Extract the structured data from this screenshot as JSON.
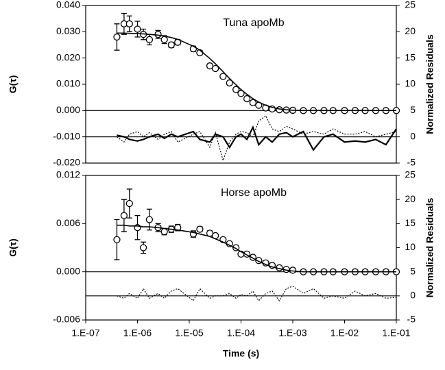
{
  "chart_data": [
    {
      "type": "scatter",
      "annotation": "Tuna apoMb",
      "ylabel": "G(τ)",
      "y2label": "Normalized Residuals",
      "xscale": "log",
      "xlim": [
        1e-07,
        0.1
      ],
      "ylim": [
        -0.02,
        0.04
      ],
      "yticks": [
        {
          "value": 0.04,
          "label": "0.040"
        },
        {
          "value": 0.03,
          "label": "0.030"
        },
        {
          "value": 0.02,
          "label": "0.020"
        },
        {
          "value": 0.01,
          "label": "0.010"
        },
        {
          "value": 0,
          "label": "0.000"
        },
        {
          "value": -0.01,
          "label": "-0.010"
        },
        {
          "value": -0.02,
          "label": "-0.020"
        }
      ],
      "y2lim": [
        -5,
        25
      ],
      "y2ticks": [
        25,
        20,
        15,
        10,
        5,
        0,
        -5
      ],
      "x": [
        4e-07,
        5.5e-07,
        7e-07,
        1e-06,
        1.3e-06,
        1.7e-06,
        2.5e-06,
        3.3e-06,
        4.5e-06,
        6e-06,
        1.2e-05,
        1.6e-05,
        2.5e-05,
        3.2e-05,
        4.5e-05,
        6e-05,
        8e-05,
        0.0001,
        0.00013,
        0.00017,
        0.00022,
        0.0003,
        0.0004,
        0.00055,
        0.00075,
        0.001,
        0.0016,
        0.0025,
        0.004,
        0.006,
        0.01,
        0.016,
        0.025,
        0.04,
        0.063,
        0.1
      ],
      "series": [
        {
          "style": "circles",
          "color": "#000000",
          "values": [
            0.028,
            0.033,
            0.033,
            0.031,
            0.029,
            0.027,
            0.029,
            0.027,
            0.025,
            0.026,
            0.0235,
            0.022,
            0.017,
            0.016,
            0.013,
            0.0105,
            0.008,
            0.0065,
            0.0045,
            0.003,
            0.002,
            0.001,
            0.0006,
            0.0003,
            0.0002,
            0.0001,
            0,
            0,
            0,
            0,
            0,
            0,
            0,
            0,
            0,
            0
          ],
          "errors": [
            0.005,
            0.004,
            0.003,
            0.003,
            0.002,
            0.002,
            0.0015,
            0.0015,
            0.001,
            0.001,
            0.001,
            0.0008,
            0.0008,
            0.0008,
            0.0006,
            0.0006,
            0.0006,
            0.0005,
            0.0004,
            0.0004,
            0.0004,
            0.0004,
            0.0004,
            0.0004,
            0.0004,
            0.0004,
            0.0004,
            0.0004,
            0.0004,
            0.0004,
            0.0004,
            0.0004,
            0.0004,
            0.0004,
            0.0004,
            0.0004
          ]
        },
        {
          "style": "solid",
          "color": "#000000",
          "values": [
            0.0295,
            0.0295,
            0.0294,
            0.0293,
            0.0292,
            0.029,
            0.0287,
            0.0283,
            0.0278,
            0.0271,
            0.0245,
            0.023,
            0.0198,
            0.0178,
            0.0148,
            0.0122,
            0.0098,
            0.008,
            0.0062,
            0.0045,
            0.0032,
            0.002,
            0.0012,
            0.0006,
            0.0003,
            0.0001,
            0,
            0,
            0,
            0,
            0,
            0,
            0,
            0,
            0,
            0
          ]
        },
        {
          "style": "solid",
          "axis": "y2",
          "color": "#000000",
          "values": [
            0.3,
            0,
            -0.5,
            -0.8,
            -0.5,
            0,
            0.5,
            -0.3,
            0.5,
            0,
            1,
            -0.5,
            -1,
            0.5,
            0,
            -2,
            0,
            0.5,
            -0.5,
            1.8,
            -1.5,
            0,
            -1,
            0.5,
            0.8,
            0,
            1,
            -2.5,
            0,
            0.5,
            -1,
            -0.8,
            -1,
            -0.5,
            -1.5,
            1.5
          ]
        },
        {
          "style": "dotted",
          "axis": "y2",
          "color": "#000000",
          "values": [
            0,
            -1,
            0.5,
            1,
            0,
            0.8,
            -0.5,
            0.5,
            1,
            -1,
            0.5,
            1,
            -2,
            0.8,
            -4.5,
            -1,
            0.5,
            1,
            0.8,
            0,
            3,
            4,
            1.5,
            1,
            2,
            1.5,
            0.5,
            1,
            0.5,
            1.5,
            0.5,
            0.5,
            1,
            0,
            0.5,
            1
          ]
        }
      ]
    },
    {
      "type": "scatter",
      "annotation": "Horse apoMb",
      "ylabel": "G(τ)",
      "y2label": "Normalized Residuals",
      "xlabel": "Time (s)",
      "xscale": "log",
      "xlim": [
        1e-07,
        0.1
      ],
      "xticks": [
        {
          "value": 1e-07,
          "label": "1.E-07"
        },
        {
          "value": 1e-06,
          "label": "1.E-06"
        },
        {
          "value": 1e-05,
          "label": "1.E-05"
        },
        {
          "value": 0.0001,
          "label": "1.E-04"
        },
        {
          "value": 0.001,
          "label": "1.E-03"
        },
        {
          "value": 0.01,
          "label": "1.E-02"
        },
        {
          "value": 0.1,
          "label": "1.E-01"
        }
      ],
      "ylim": [
        -0.006,
        0.012
      ],
      "yticks": [
        {
          "value": 0.012,
          "label": "0.012"
        },
        {
          "value": 0.006,
          "label": "0.006"
        },
        {
          "value": 0,
          "label": "0.000"
        },
        {
          "value": -0.006,
          "label": "-0.006"
        }
      ],
      "y2lim": [
        -5,
        25
      ],
      "y2ticks": [
        25,
        20,
        15,
        10,
        5,
        0,
        -5
      ],
      "x": [
        4e-07,
        5.5e-07,
        7e-07,
        1e-06,
        1.3e-06,
        1.7e-06,
        2.5e-06,
        3.3e-06,
        4.5e-06,
        6e-06,
        1.2e-05,
        1.6e-05,
        2.5e-05,
        3.2e-05,
        4.5e-05,
        6e-05,
        8e-05,
        0.0001,
        0.00013,
        0.00017,
        0.00022,
        0.0003,
        0.0004,
        0.00055,
        0.00075,
        0.001,
        0.0016,
        0.0025,
        0.004,
        0.006,
        0.01,
        0.016,
        0.025,
        0.04,
        0.063,
        0.1
      ],
      "series": [
        {
          "style": "circles",
          "color": "#000000",
          "values": [
            0.004,
            0.007,
            0.0085,
            0.0055,
            0.003,
            0.0065,
            0.0055,
            0.005,
            0.0053,
            0.0055,
            0.0047,
            0.0053,
            0.0048,
            0.0045,
            0.004,
            0.0035,
            0.003,
            0.0022,
            0.0022,
            0.0018,
            0.0014,
            0.0011,
            0.0008,
            0.0005,
            0.0003,
            0.0002,
            0,
            0,
            0,
            0,
            0,
            0,
            0,
            0,
            0,
            0
          ],
          "errors": [
            0.0025,
            0.002,
            0.0018,
            0.0015,
            0.0007,
            0.0013,
            0.0005,
            0.0004,
            0.0004,
            0.0004,
            0.0004,
            0.0003,
            0.0003,
            0.0002,
            0.0002,
            0.0002,
            0.0002,
            0.0002,
            0.0001,
            0.0001,
            0.0001,
            0.0001,
            0.0001,
            0.0001,
            0.0001,
            0.0001,
            0.0001,
            0.0001,
            0.0001,
            0.0001,
            0.0001,
            0.0001,
            0.0001,
            0.0001,
            0.0001,
            0.0001
          ]
        },
        {
          "style": "solid",
          "color": "#000000",
          "values": [
            0.0058,
            0.0058,
            0.0057,
            0.0057,
            0.0056,
            0.0056,
            0.0055,
            0.0054,
            0.0053,
            0.0052,
            0.0049,
            0.0047,
            0.0044,
            0.0041,
            0.0037,
            0.0033,
            0.0029,
            0.0025,
            0.0021,
            0.0017,
            0.0013,
            0.0009,
            0.0006,
            0.0004,
            0.0002,
            0.0001,
            0,
            0,
            0,
            0,
            0,
            0,
            0,
            0,
            0,
            0
          ]
        },
        {
          "style": "dotted",
          "axis": "y2",
          "color": "#000000",
          "values": [
            0,
            -0.5,
            0.5,
            -0.5,
            1.5,
            -0.5,
            0.5,
            -0.5,
            1,
            1.5,
            -1,
            1.5,
            -0.5,
            0,
            0,
            0.5,
            -0.5,
            0.3,
            0,
            1,
            -1,
            0.5,
            1,
            -1,
            1.5,
            2,
            0.5,
            1.5,
            -0.5,
            0,
            -0.5,
            1,
            0,
            0.5,
            -0.5,
            -0.3
          ]
        }
      ]
    }
  ]
}
